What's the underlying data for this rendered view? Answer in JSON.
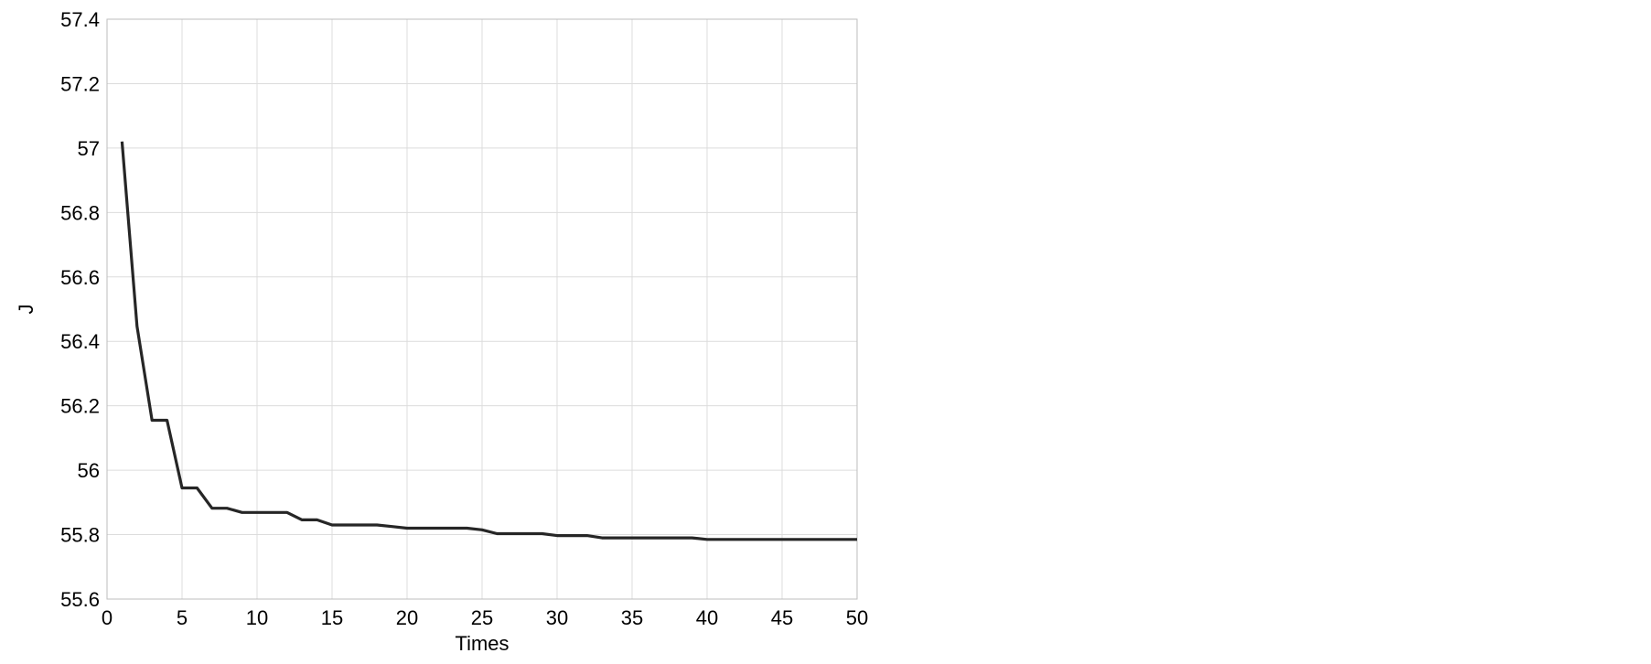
{
  "chart_data": {
    "type": "line",
    "title": "",
    "xlabel": "Times",
    "ylabel": "J",
    "xlim": [
      0,
      50
    ],
    "ylim": [
      55.6,
      57.4
    ],
    "xticks": [
      "0",
      "5",
      "10",
      "15",
      "20",
      "25",
      "30",
      "35",
      "40",
      "45",
      "50"
    ],
    "yticks": [
      "55.6",
      "55.8",
      "56",
      "56.2",
      "56.4",
      "56.6",
      "56.8",
      "57",
      "57.2",
      "57.4"
    ],
    "grid": true,
    "line_color": "#262626",
    "x": [
      1,
      2,
      3,
      4,
      5,
      6,
      7,
      8,
      9,
      10,
      11,
      12,
      13,
      14,
      15,
      16,
      17,
      18,
      19,
      20,
      21,
      22,
      23,
      24,
      25,
      26,
      27,
      28,
      29,
      30,
      31,
      32,
      33,
      34,
      35,
      36,
      37,
      38,
      39,
      40,
      41,
      42,
      43,
      44,
      45,
      46,
      47,
      48,
      49,
      50
    ],
    "series": [
      {
        "values": [
          57.02,
          56.447,
          56.155,
          56.155,
          55.945,
          55.945,
          55.882,
          55.882,
          55.869,
          55.869,
          55.869,
          55.869,
          55.846,
          55.846,
          55.83,
          55.83,
          55.83,
          55.83,
          55.825,
          55.82,
          55.82,
          55.82,
          55.82,
          55.82,
          55.815,
          55.803,
          55.803,
          55.803,
          55.803,
          55.797,
          55.797,
          55.797,
          55.79,
          55.79,
          55.79,
          55.79,
          55.79,
          55.79,
          55.79,
          55.785,
          55.785,
          55.785,
          55.785,
          55.785,
          55.785,
          55.785,
          55.785,
          55.785,
          55.785,
          55.785
        ]
      }
    ]
  }
}
